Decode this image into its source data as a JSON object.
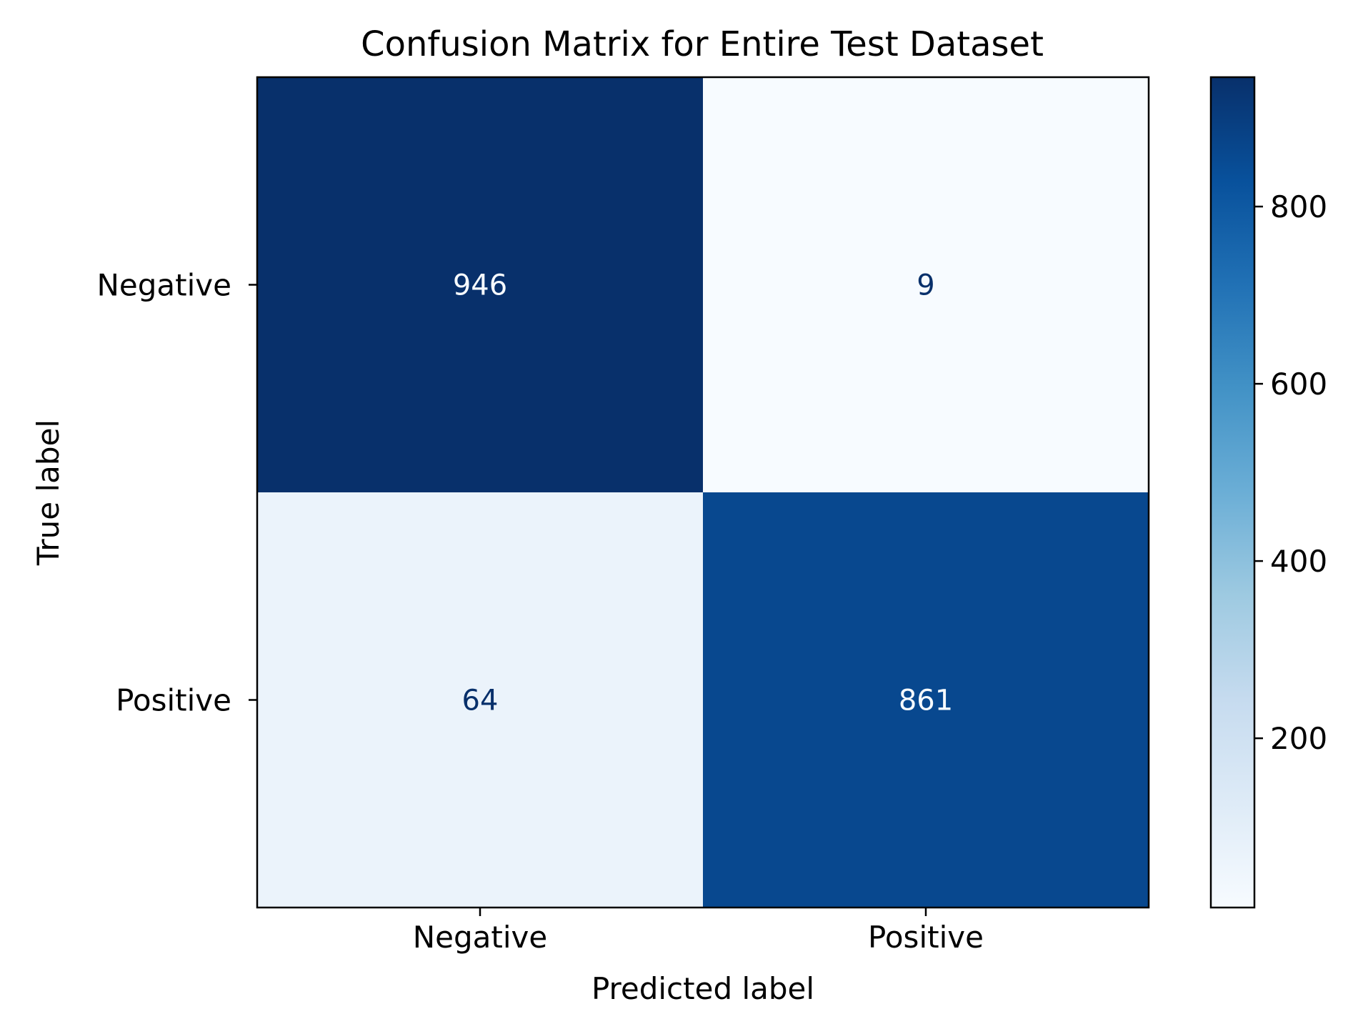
{
  "chart_data": {
    "type": "heatmap",
    "title": "Confusion Matrix for Entire Test Dataset",
    "xlabel": "Predicted label",
    "ylabel": "True label",
    "x_categories": [
      "Negative",
      "Positive"
    ],
    "y_categories": [
      "Negative",
      "Positive"
    ],
    "matrix": [
      [
        946,
        9
      ],
      [
        64,
        861
      ]
    ],
    "colormap": "Blues",
    "colorbar": {
      "range": [
        9,
        946
      ],
      "ticks": [
        200,
        400,
        600,
        800
      ]
    },
    "grid": false
  }
}
